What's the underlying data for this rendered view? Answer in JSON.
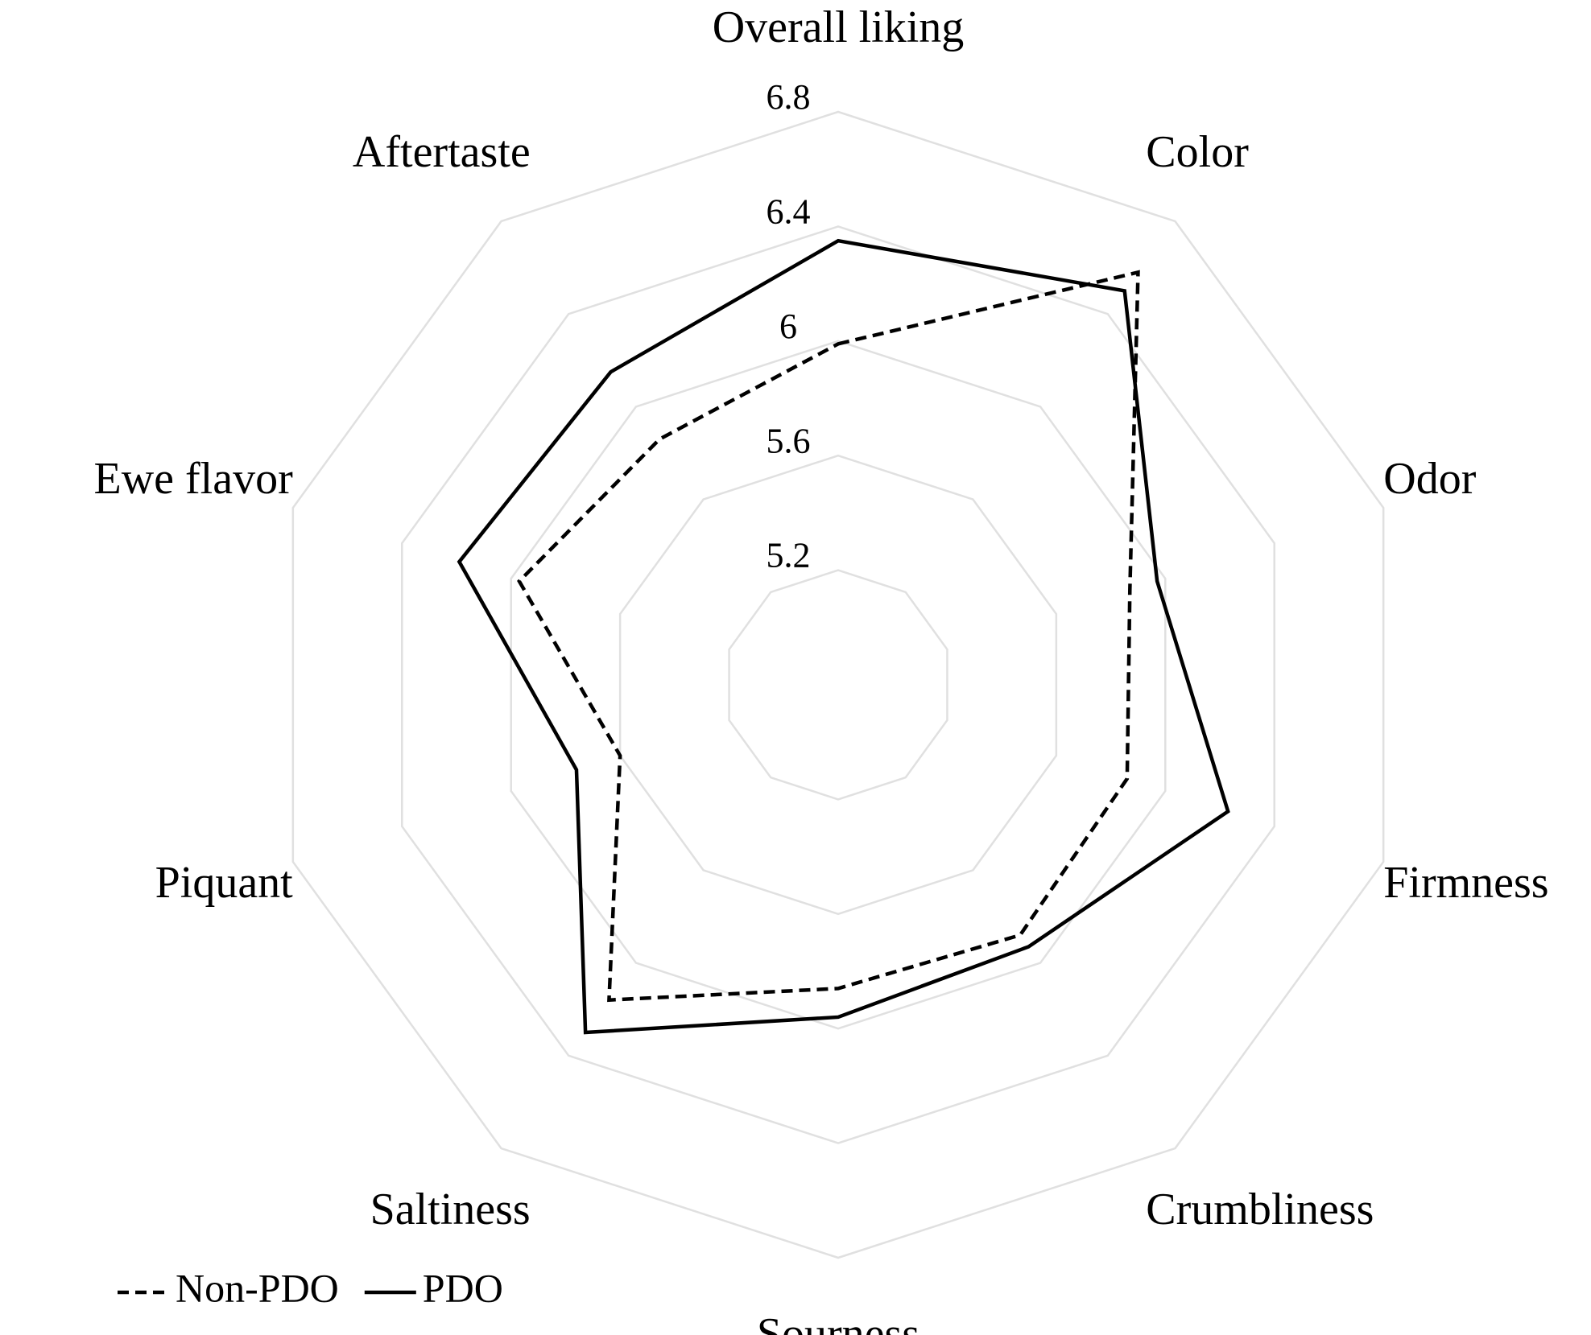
{
  "chart_data": {
    "type": "radar",
    "categories": [
      "Overall liking",
      "Color",
      "Odor",
      "Firmness",
      "Crumbliness",
      "Sourness",
      "Saltiness",
      "Piquant",
      "Ewe flavor",
      "Aftertaste"
    ],
    "series": [
      {
        "name": "Non-PDO",
        "color": "#000000",
        "dash": true,
        "values": [
          5.99,
          6.58,
          5.87,
          5.86,
          5.88,
          5.86,
          6.16,
          5.6,
          5.97,
          5.86
        ]
      },
      {
        "name": "PDO",
        "color": "#000000",
        "dash": false,
        "values": [
          6.35,
          6.5,
          5.97,
          6.23,
          5.93,
          5.96,
          6.3,
          5.76,
          6.19,
          6.15
        ]
      }
    ],
    "ylim": [
      4.8,
      6.8
    ],
    "yticks": [
      5.2,
      5.6,
      6.0,
      6.4,
      6.8
    ],
    "grid": true,
    "legend": "bottom-left"
  }
}
